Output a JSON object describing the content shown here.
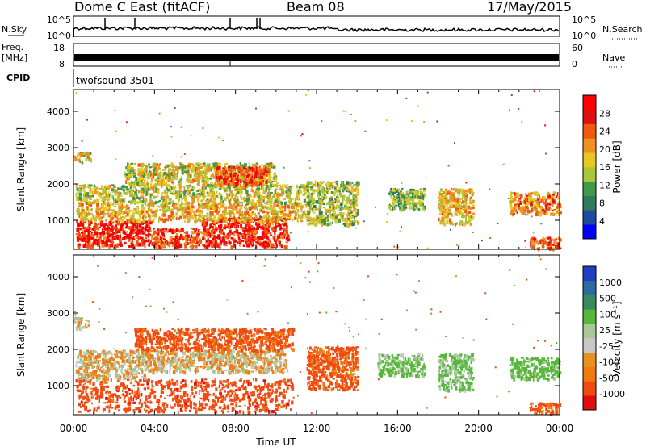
{
  "header": {
    "station": "Dome C East (fitACF)",
    "beam": "Beam 08",
    "date": "17/May/2015"
  },
  "nsky": {
    "label": "N.Sky",
    "ticks": [
      "10^5",
      "10^0"
    ],
    "right_label": "N.Search",
    "right_ticks": [
      "10^5",
      "10^0"
    ]
  },
  "freq": {
    "label": "Freq.",
    "unit": "[MHz]",
    "ticks": [
      "18",
      "8"
    ],
    "right_label": "Nave",
    "right_ticks": [
      "60",
      "0"
    ]
  },
  "cpid": {
    "label": "CPID",
    "value": "twofsound 3501"
  },
  "x_axis": {
    "label": "Time UT",
    "ticks": [
      "00:00",
      "04:00",
      "08:00",
      "12:00",
      "16:00",
      "20:00",
      "00:00"
    ],
    "range_hours": [
      0,
      24
    ]
  },
  "colors": {
    "power_scale": [
      "#0000ff",
      "#1e4aa0",
      "#2e7a5a",
      "#3e9a4a",
      "#a8c83a",
      "#e8c820",
      "#f09020",
      "#f05a10",
      "#e01010",
      "#ff0000"
    ],
    "velocity_scale": [
      "#1f3fc0",
      "#2e6aa0",
      "#3a8a60",
      "#56b83a",
      "#a8c898",
      "#c8c8c8",
      "#e89020",
      "#f07a10",
      "#f04a10",
      "#e01010"
    ]
  },
  "chart_data": [
    {
      "type": "heatmap",
      "title": "",
      "ylabel": "Slant Range [km]",
      "ylim": [
        200,
        4600
      ],
      "y_ticks": [
        1000,
        2000,
        3000,
        4000
      ],
      "colorbar": {
        "label": "Power [dB]",
        "range": [
          0,
          30
        ],
        "ticks": [
          "4",
          "8",
          "12",
          "16",
          "20",
          "24",
          "28"
        ]
      },
      "echo_regions": [
        {
          "t0": 0.1,
          "t1": 3.8,
          "r0": 300,
          "r1": 1000,
          "level": 26
        },
        {
          "t0": 3.8,
          "t1": 6.2,
          "r0": 300,
          "r1": 800,
          "level": 24
        },
        {
          "t0": 6.3,
          "t1": 10.6,
          "r0": 300,
          "r1": 1100,
          "level": 26
        },
        {
          "t0": 0.1,
          "t1": 11.5,
          "r0": 1000,
          "r1": 1500,
          "level": 18
        },
        {
          "t0": 0.1,
          "t1": 11.5,
          "r0": 1500,
          "r1": 2000,
          "level": 15
        },
        {
          "t0": 2.5,
          "t1": 10.0,
          "r0": 2000,
          "r1": 2600,
          "level": 16
        },
        {
          "t0": 7.0,
          "t1": 9.6,
          "r0": 2000,
          "r1": 2500,
          "level": 24
        },
        {
          "t0": 0.0,
          "t1": 0.8,
          "r0": 2600,
          "r1": 2900,
          "level": 16
        },
        {
          "t0": 11.5,
          "t1": 14.0,
          "r0": 900,
          "r1": 2100,
          "level": 14
        },
        {
          "t0": 15.5,
          "t1": 17.3,
          "r0": 1300,
          "r1": 1900,
          "level": 12
        },
        {
          "t0": 18.0,
          "t1": 19.7,
          "r0": 900,
          "r1": 1900,
          "level": 18
        },
        {
          "t0": 21.5,
          "t1": 24.0,
          "r0": 1200,
          "r1": 1800,
          "level": 20
        },
        {
          "t0": 22.5,
          "t1": 24.0,
          "r0": 250,
          "r1": 550,
          "level": 24
        }
      ]
    },
    {
      "type": "heatmap",
      "title": "",
      "ylabel": "Slant Range [km]",
      "ylim": [
        200,
        4600
      ],
      "y_ticks": [
        1000,
        2000,
        3000,
        4000
      ],
      "colorbar": {
        "label": "Velocity [m s⁻¹]",
        "ticks": [
          "-1000",
          "-500",
          "-100",
          "-25",
          "25",
          "100",
          "500",
          "1000"
        ]
      },
      "echo_regions": [
        {
          "t0": 0.1,
          "t1": 10.8,
          "r0": 300,
          "r1": 1200,
          "velocity": -300
        },
        {
          "t0": 0.1,
          "t1": 3.5,
          "r0": 1200,
          "r1": 2000,
          "velocity": 0
        },
        {
          "t0": 3.5,
          "t1": 10.5,
          "r0": 1400,
          "r1": 2000,
          "velocity": 0
        },
        {
          "t0": 3.0,
          "t1": 10.8,
          "r0": 2000,
          "r1": 2600,
          "velocity": -200
        },
        {
          "t0": 0.0,
          "t1": 0.7,
          "r0": 2600,
          "r1": 2900,
          "velocity": 20
        },
        {
          "t0": 11.5,
          "t1": 14.0,
          "r0": 900,
          "r1": 2100,
          "velocity": -150
        },
        {
          "t0": 15.0,
          "t1": 17.3,
          "r0": 1300,
          "r1": 1900,
          "velocity": 150
        },
        {
          "t0": 18.0,
          "t1": 19.7,
          "r0": 900,
          "r1": 1900,
          "velocity": 150
        },
        {
          "t0": 21.5,
          "t1": 24.0,
          "r0": 1200,
          "r1": 1800,
          "velocity": 200
        },
        {
          "t0": 22.5,
          "t1": 24.0,
          "r0": 250,
          "r1": 550,
          "velocity": -200
        }
      ]
    }
  ]
}
